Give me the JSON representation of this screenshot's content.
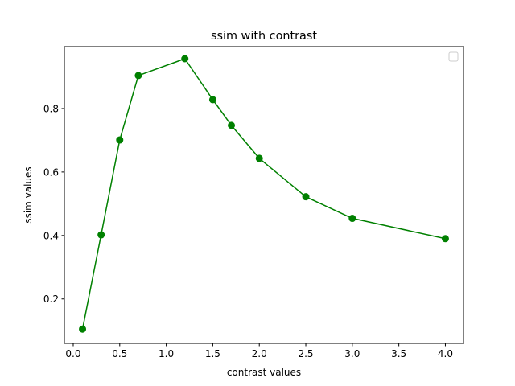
{
  "chart_data": {
    "type": "line",
    "title": "ssim with contrast",
    "xlabel": "contrast values",
    "ylabel": "ssim values",
    "xlim": [
      -0.095,
      4.195
    ],
    "ylim": [
      0.06,
      0.995
    ],
    "xticks": [
      0.0,
      0.5,
      1.0,
      1.5,
      2.0,
      2.5,
      3.0,
      3.5,
      4.0
    ],
    "xtick_labels": [
      "0.0",
      "0.5",
      "1.0",
      "1.5",
      "2.0",
      "2.5",
      "3.0",
      "3.5",
      "4.0"
    ],
    "yticks": [
      0.2,
      0.4,
      0.6,
      0.8
    ],
    "ytick_labels": [
      "0.2",
      "0.4",
      "0.6",
      "0.8"
    ],
    "grid": false,
    "legend": "top-right",
    "series": [
      {
        "name": "",
        "color": "#008000",
        "marker": "circle",
        "x": [
          0.1,
          0.3,
          0.5,
          0.7,
          1.2,
          1.5,
          1.7,
          2.0,
          2.5,
          3.0,
          4.0
        ],
        "y": [
          0.105,
          0.402,
          0.701,
          0.904,
          0.957,
          0.828,
          0.747,
          0.643,
          0.522,
          0.454,
          0.39
        ]
      }
    ]
  }
}
